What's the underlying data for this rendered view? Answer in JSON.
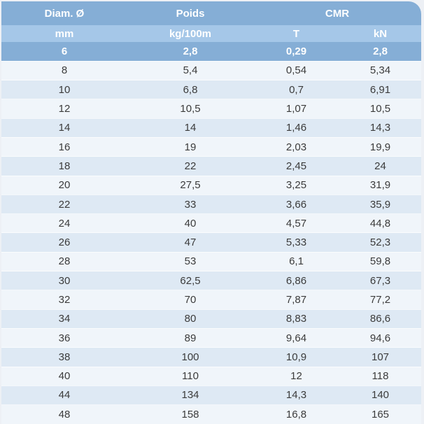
{
  "theme": {
    "page_background": "#edf0f5",
    "header_blue": "#85aed6",
    "subheader_blue": "#a5c7e8",
    "highlight_row_blue": "#85aed6",
    "row_light": "#f0f5fa",
    "row_alt": "#dee9f4",
    "header_text": "#ffffff",
    "body_text": "#3b3b3b"
  },
  "chart_data": {
    "type": "table",
    "title": "",
    "column_groups": [
      {
        "label": "Diam. Ø",
        "span": 1
      },
      {
        "label": "Poids",
        "span": 1
      },
      {
        "label": "CMR",
        "span": 2
      }
    ],
    "columns": [
      "mm",
      "kg/100m",
      "T",
      "kN"
    ],
    "rows": [
      [
        "6",
        "2,8",
        "0,29",
        "2,8"
      ],
      [
        "8",
        "5,4",
        "0,54",
        "5,34"
      ],
      [
        "10",
        "6,8",
        "0,7",
        "6,91"
      ],
      [
        "12",
        "10,5",
        "1,07",
        "10,5"
      ],
      [
        "14",
        "14",
        "1,46",
        "14,3"
      ],
      [
        "16",
        "19",
        "2,03",
        "19,9"
      ],
      [
        "18",
        "22",
        "2,45",
        "24"
      ],
      [
        "20",
        "27,5",
        "3,25",
        "31,9"
      ],
      [
        "22",
        "33",
        "3,66",
        "35,9"
      ],
      [
        "24",
        "40",
        "4,57",
        "44,8"
      ],
      [
        "26",
        "47",
        "5,33",
        "52,3"
      ],
      [
        "28",
        "53",
        "6,1",
        "59,8"
      ],
      [
        "30",
        "62,5",
        "6,86",
        "67,3"
      ],
      [
        "32",
        "70",
        "7,87",
        "77,2"
      ],
      [
        "34",
        "80",
        "8,83",
        "86,6"
      ],
      [
        "36",
        "89",
        "9,64",
        "94,6"
      ],
      [
        "38",
        "100",
        "10,9",
        "107"
      ],
      [
        "40",
        "110",
        "12",
        "118"
      ],
      [
        "44",
        "134",
        "14,3",
        "140"
      ],
      [
        "48",
        "158",
        "16,8",
        "165"
      ]
    ],
    "highlighted_row": "6",
    "layout": {
      "rounded_corner": "top-right",
      "grid": "off",
      "alternating_rows": true
    }
  }
}
